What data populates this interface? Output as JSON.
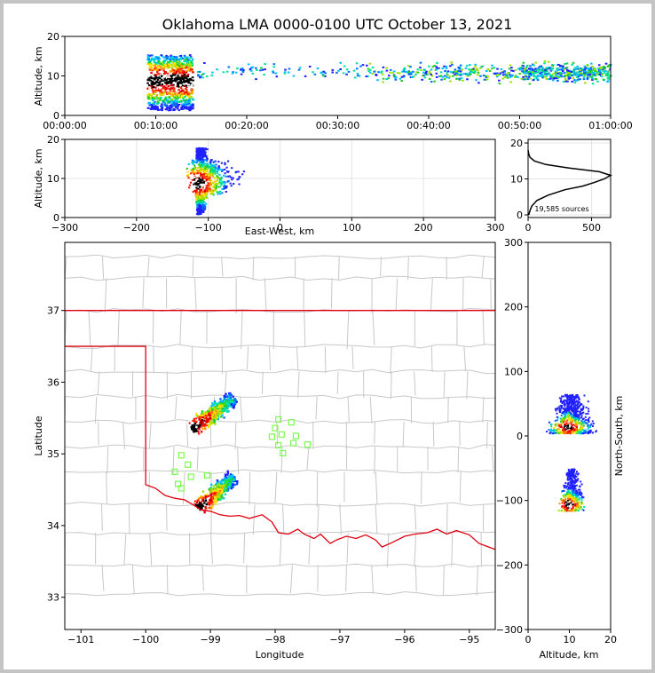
{
  "title": "Oklahoma LMA 0000-0100 UTC October 13, 2021",
  "colors": {
    "state_border": "#e0000f",
    "county_lines": "#c8c8c8",
    "stations": "#7cfc50",
    "panel_frame": "#000000"
  },
  "source_count": "19,585 sources",
  "chart_data": [
    {
      "type": "heatmap",
      "panel": "altitude-time",
      "ylabel": "Altitude, km",
      "ylim": [
        0,
        20
      ],
      "yticks": [
        "0",
        "10",
        "20"
      ],
      "xlim": [
        "00:00:00",
        "01:00:00"
      ],
      "xticks": [
        "00:00:00",
        "00:10:00",
        "00:20:00",
        "00:30:00",
        "00:40:00",
        "00:50:00",
        "01:00:00"
      ],
      "clusters": [
        {
          "t": [
            9.0,
            14.0
          ],
          "alt": [
            1.5,
            15.5
          ],
          "intensity": "high"
        },
        {
          "t": [
            14.0,
            33.0
          ],
          "alt": [
            9,
            14
          ],
          "intensity": "sparse"
        },
        {
          "t": [
            33.0,
            50.0
          ],
          "alt": [
            8,
            14
          ],
          "intensity": "medium"
        },
        {
          "t": [
            50.0,
            60.0
          ],
          "alt": [
            8,
            14
          ],
          "intensity": "medium-high"
        }
      ]
    },
    {
      "type": "heatmap",
      "panel": "altitude-eastwest",
      "xlabel": "East-West, km",
      "ylabel": "Altitude, km",
      "xlim": [
        -300,
        300
      ],
      "ylim": [
        0,
        20
      ],
      "xticks": [
        "−300",
        "−200",
        "−100",
        "0",
        "100",
        "200",
        "300"
      ],
      "yticks": [
        "0",
        "10",
        "20"
      ],
      "clusters": [
        {
          "x": [
            -130,
            -60
          ],
          "alt": [
            1,
            18
          ],
          "core_x": -115,
          "core_alt": 9
        }
      ]
    },
    {
      "type": "line",
      "panel": "altitude-histogram",
      "xlim": [
        0,
        650
      ],
      "ylim": [
        0,
        21
      ],
      "xticks": [
        "0",
        "500"
      ],
      "yticks": [
        "0",
        "10",
        "20"
      ],
      "profile": [
        {
          "count": 5,
          "alt": 0
        },
        {
          "count": 18,
          "alt": 1.5
        },
        {
          "count": 30,
          "alt": 2.5
        },
        {
          "count": 70,
          "alt": 4
        },
        {
          "count": 160,
          "alt": 5.5
        },
        {
          "count": 290,
          "alt": 7
        },
        {
          "count": 430,
          "alt": 8
        },
        {
          "count": 520,
          "alt": 9
        },
        {
          "count": 600,
          "alt": 10
        },
        {
          "count": 650,
          "alt": 11
        },
        {
          "count": 560,
          "alt": 12
        },
        {
          "count": 330,
          "alt": 13
        },
        {
          "count": 140,
          "alt": 14
        },
        {
          "count": 50,
          "alt": 15
        },
        {
          "count": 15,
          "alt": 16
        },
        {
          "count": 5,
          "alt": 17
        },
        {
          "count": 0,
          "alt": 18
        }
      ]
    },
    {
      "type": "heatmap",
      "panel": "plan-view",
      "xlabel": "Longitude",
      "ylabel": "Latitude",
      "xlim": [
        -101.25,
        -94.6
      ],
      "ylim": [
        32.55,
        37.95
      ],
      "xticks": [
        "−101",
        "−100",
        "−99",
        "−98",
        "−97",
        "−96",
        "−95"
      ],
      "yticks": [
        "33",
        "34",
        "35",
        "36",
        "37"
      ],
      "stations": [
        {
          "lon": -99.45,
          "lat": 34.98
        },
        {
          "lon": -99.35,
          "lat": 34.85
        },
        {
          "lon": -99.55,
          "lat": 34.75
        },
        {
          "lon": -99.3,
          "lat": 34.68
        },
        {
          "lon": -99.5,
          "lat": 34.58
        },
        {
          "lon": -99.45,
          "lat": 34.52
        },
        {
          "lon": -99.05,
          "lat": 34.7
        },
        {
          "lon": -97.95,
          "lat": 35.48
        },
        {
          "lon": -98.0,
          "lat": 35.36
        },
        {
          "lon": -97.75,
          "lat": 35.44
        },
        {
          "lon": -97.9,
          "lat": 35.27
        },
        {
          "lon": -98.05,
          "lat": 35.24
        },
        {
          "lon": -97.68,
          "lat": 35.25
        },
        {
          "lon": -97.72,
          "lat": 35.15
        },
        {
          "lon": -97.95,
          "lat": 35.12
        },
        {
          "lon": -97.5,
          "lat": 35.13
        },
        {
          "lon": -97.88,
          "lat": 35.01
        }
      ],
      "clusters": [
        {
          "lon": [
            -99.3,
            -98.65
          ],
          "lat": [
            35.3,
            35.85
          ],
          "axis_deg": 40
        },
        {
          "lon": [
            -99.2,
            -98.65
          ],
          "lat": [
            34.2,
            34.75
          ],
          "axis_deg": 45
        }
      ]
    },
    {
      "type": "heatmap",
      "panel": "northsouth-altitude",
      "xlabel": "Altitude, km",
      "ylabel": "North-South, km",
      "xlim": [
        0,
        20
      ],
      "ylim": [
        -300,
        300
      ],
      "xticks": [
        "0",
        "10",
        "20"
      ],
      "yticks": [
        "−300",
        "−200",
        "−100",
        "0",
        "100",
        "200",
        "300"
      ],
      "clusters": [
        {
          "alt": [
            1,
            17
          ],
          "ns": [
            5,
            65
          ],
          "core_ns": 15
        },
        {
          "alt": [
            5,
            14
          ],
          "ns": [
            -115,
            -50
          ],
          "core_ns": -105
        }
      ]
    }
  ]
}
